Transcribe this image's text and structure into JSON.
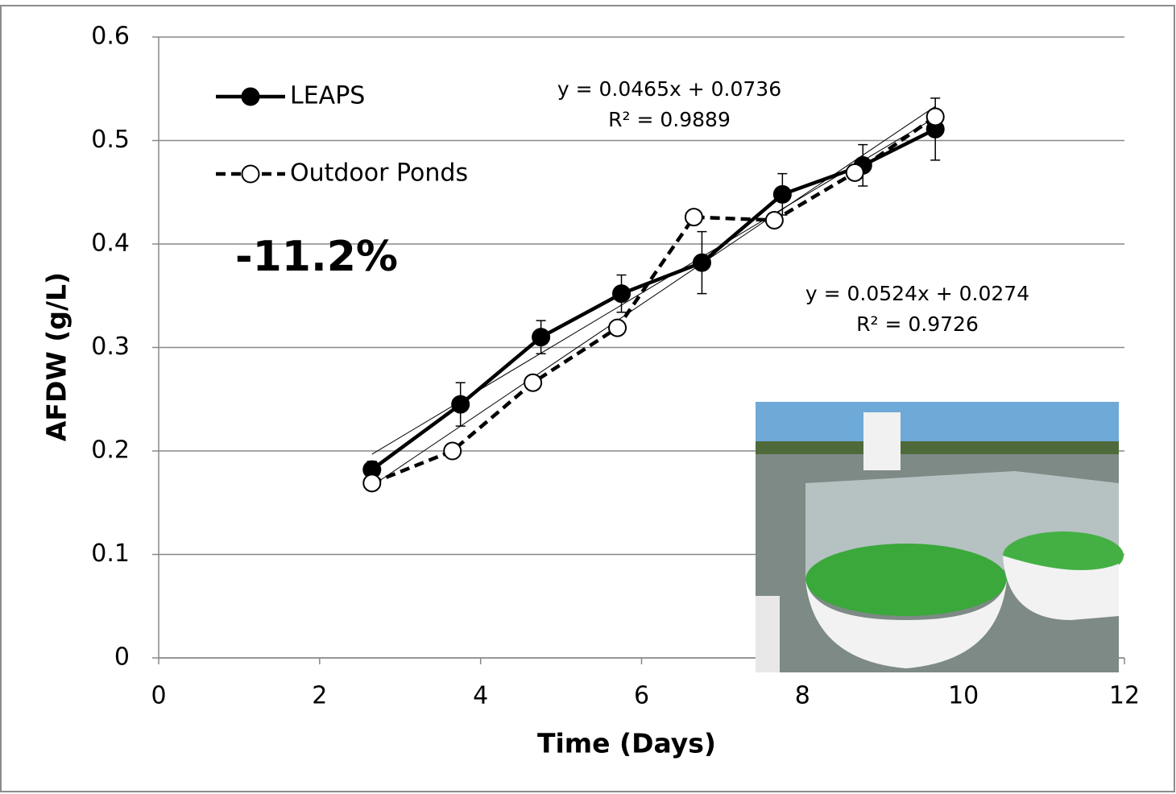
{
  "chart_data": {
    "type": "line",
    "xlabel": "Time (Days)",
    "ylabel": "AFDW (g/L)",
    "xlim": [
      0,
      12
    ],
    "xticks": [
      0,
      2,
      4,
      6,
      8,
      10,
      12
    ],
    "ylim": [
      0,
      0.6
    ],
    "yticks": [
      0,
      0.1,
      0.2,
      0.3,
      0.4,
      0.5,
      0.6
    ],
    "grid": true,
    "legend": "upper left",
    "annotation": "-11.2%",
    "series": [
      {
        "name": "LEAPS",
        "color": "#000000",
        "marker": "filled",
        "dash": "solid",
        "x": [
          2.65,
          3.75,
          4.75,
          5.75,
          6.75,
          7.75,
          8.75,
          9.65
        ],
        "values": [
          0.182,
          0.245,
          0.31,
          0.352,
          0.382,
          0.448,
          0.476,
          0.511
        ],
        "errors": [
          0.008,
          0.021,
          0.016,
          0.018,
          0.03,
          0.02,
          0.02,
          0.03
        ],
        "trendline": {
          "slope": 0.0465,
          "intercept": 0.0736,
          "equation": "y = 0.0465x + 0.0736",
          "r2": "R² = 0.9889"
        }
      },
      {
        "name": "Outdoor Ponds",
        "color": "#000000",
        "marker": "open",
        "dash": "dashed",
        "x": [
          2.65,
          3.65,
          4.65,
          5.7,
          6.65,
          7.65,
          8.65,
          9.65
        ],
        "values": [
          0.169,
          0.2,
          0.266,
          0.319,
          0.426,
          0.423,
          0.469,
          0.523
        ],
        "trendline": {
          "slope": 0.0524,
          "intercept": 0.0274,
          "equation": "y = 0.0524x + 0.0274",
          "r2": "R² = 0.9726"
        }
      }
    ]
  }
}
